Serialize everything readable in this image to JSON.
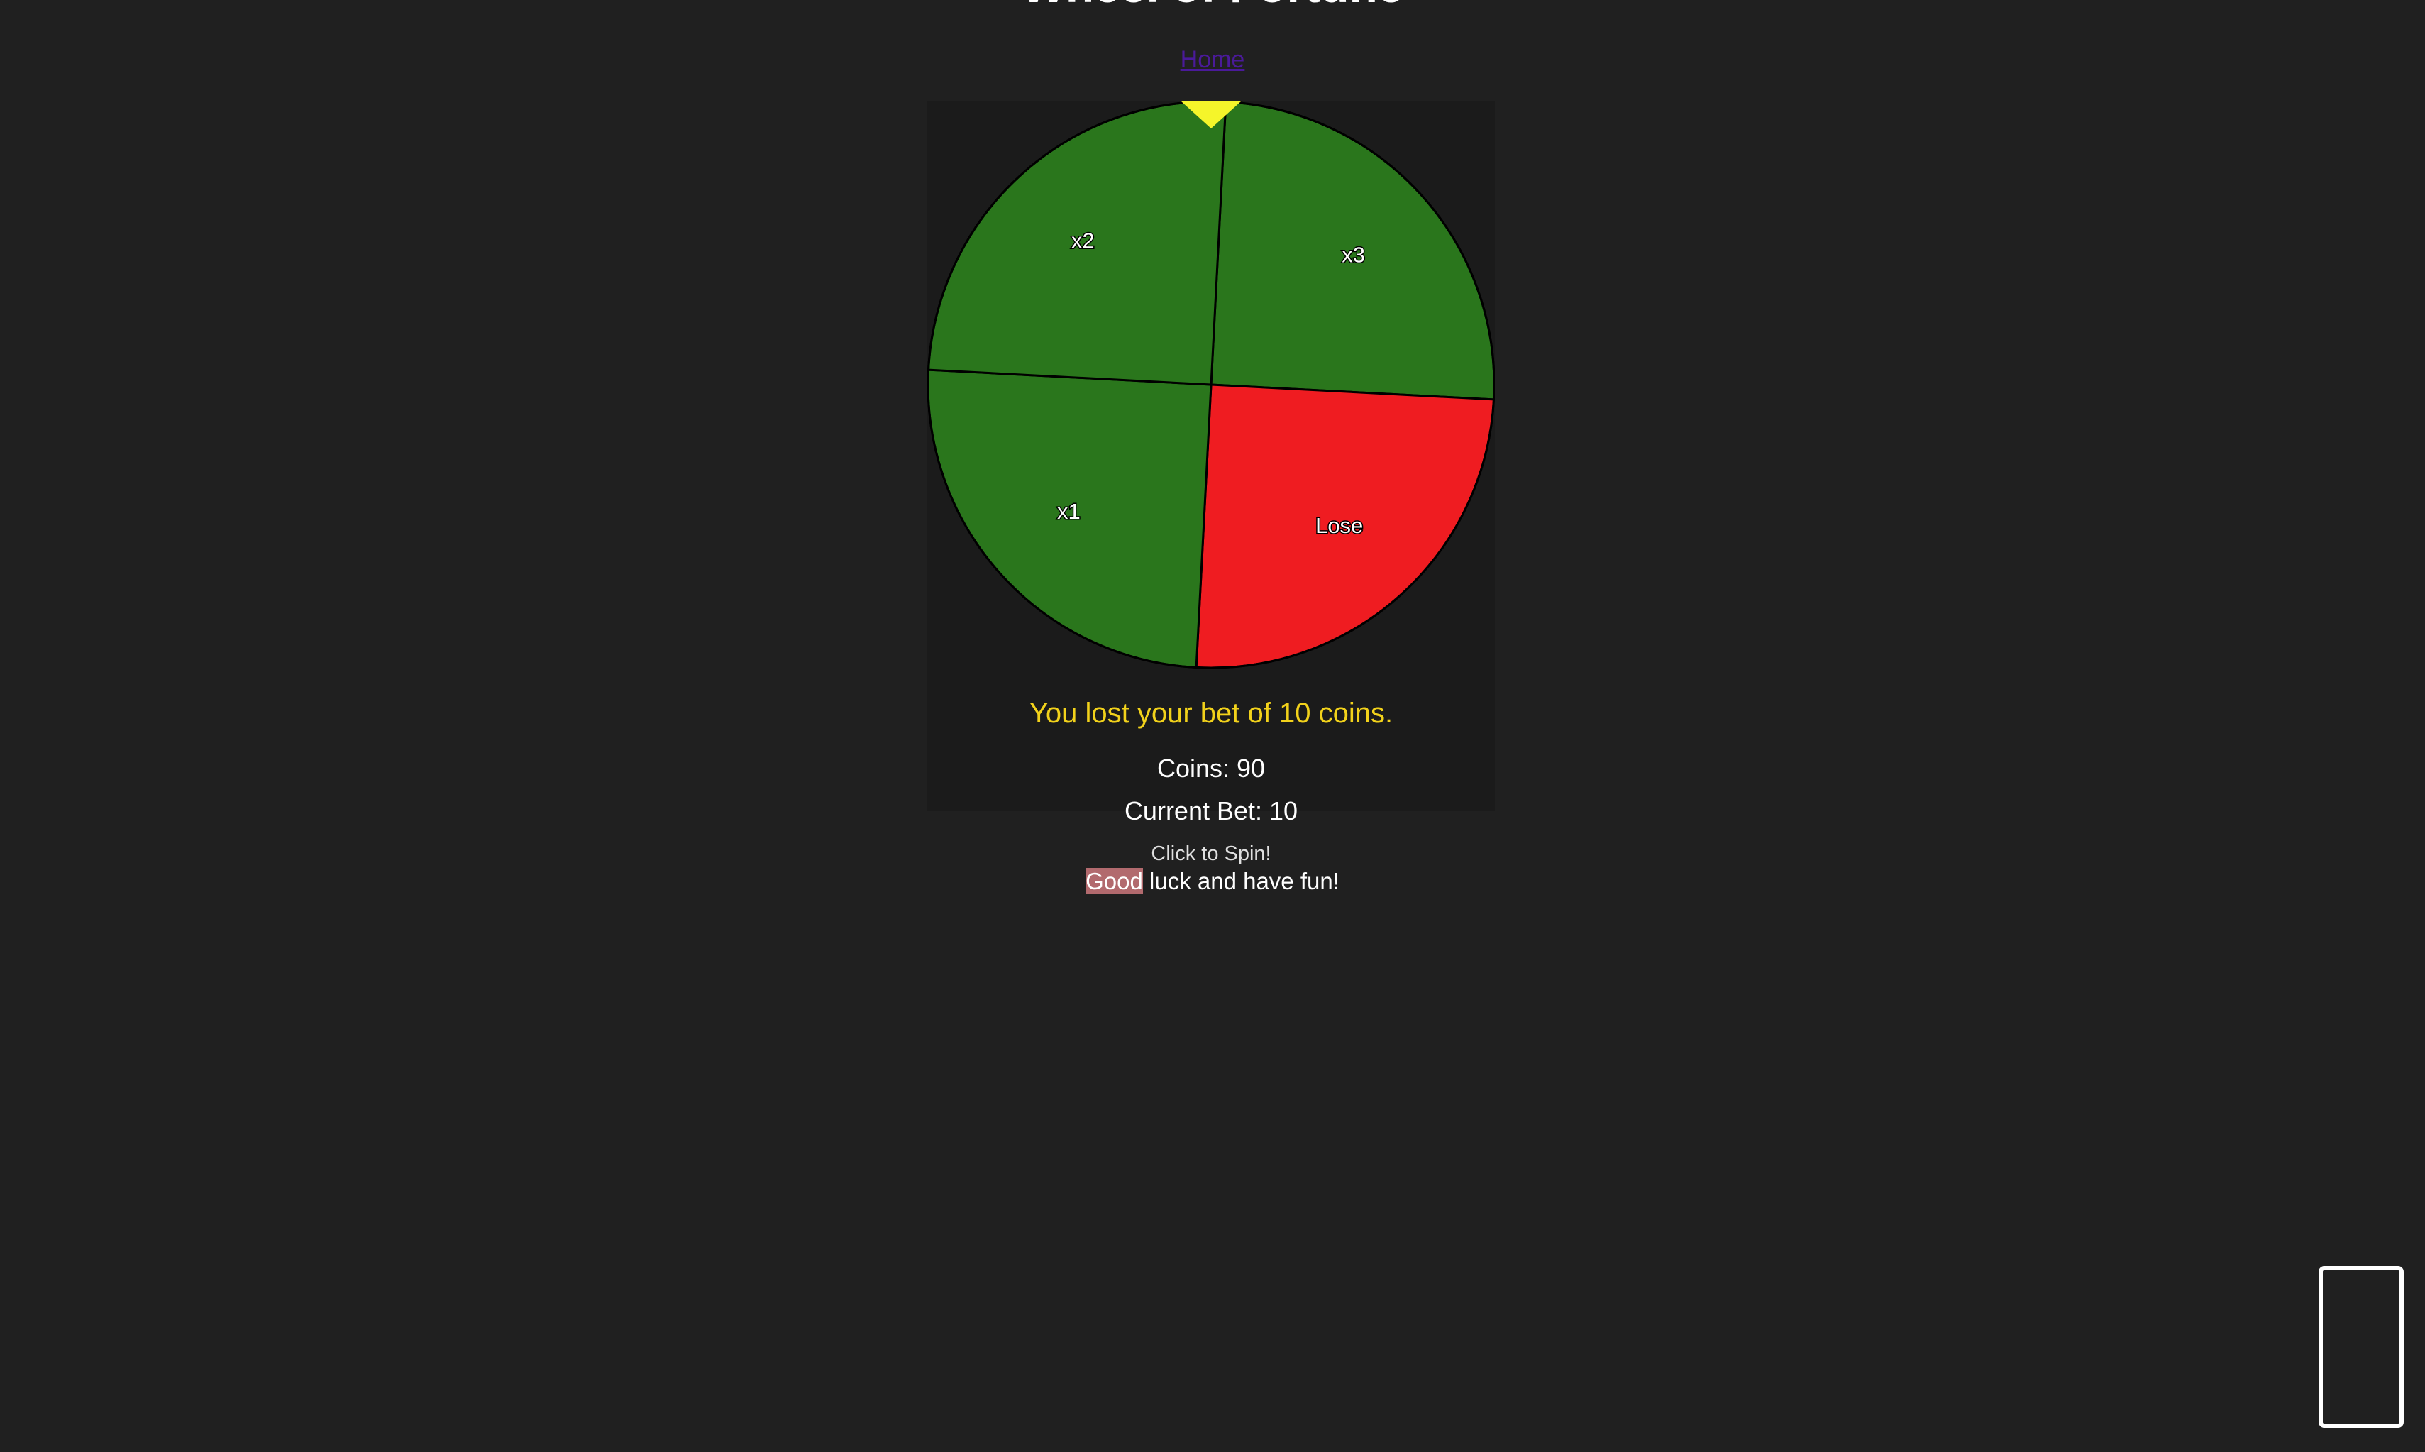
{
  "page": {
    "title": "Wheel of Fortune",
    "home_link": "Home"
  },
  "wheel": {
    "rotation_deg": 3,
    "segments": [
      {
        "label": "x3",
        "color": "#2a761c"
      },
      {
        "label": "Lose",
        "color": "#ef1c21"
      },
      {
        "label": "x1",
        "color": "#2a761c"
      },
      {
        "label": "x2",
        "color": "#2a761c"
      }
    ],
    "pointer_color": "#f5f52a"
  },
  "status": {
    "result_message": "You lost your bet of 10 coins.",
    "coins": "Coins: 90",
    "current_bet": "Current Bet: 10",
    "spin_hint": "Click to Spin!"
  },
  "footer": {
    "highlighted_word": "Good",
    "rest_text": " luck and have fun!"
  },
  "colors": {
    "background": "#202020",
    "panel": "#1b1b1b",
    "result_text": "#f2d21b",
    "highlight": "#b26a6e"
  }
}
